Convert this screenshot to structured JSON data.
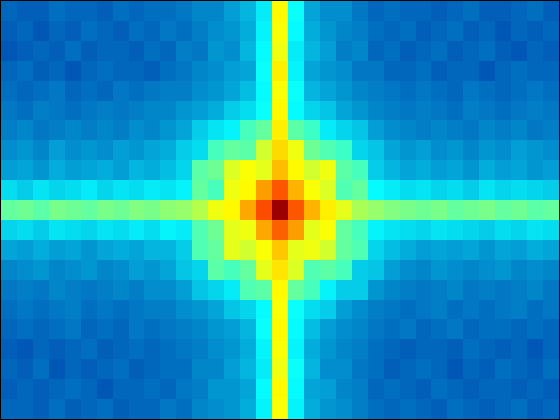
{
  "chart_data": {
    "type": "heatmap",
    "color": "jet",
    "tick_labels": false,
    "grid": false,
    "xlim": [
      0.5,
      35.5
    ],
    "ylim": [
      21.5,
      0.5
    ],
    "clim": [
      0,
      1
    ],
    "cells": [
      [
        0.18,
        0.17,
        0.17,
        0.19,
        0.18,
        0.18,
        0.17,
        0.19,
        0.18,
        0.19,
        0.19,
        0.2,
        0.22,
        0.22,
        0.25,
        0.28,
        0.35,
        0.63,
        0.38,
        0.26,
        0.23,
        0.23,
        0.2,
        0.18,
        0.19,
        0.18,
        0.18,
        0.17,
        0.18,
        0.19,
        0.17,
        0.17,
        0.18,
        0.19,
        0.17
      ],
      [
        0.17,
        0.18,
        0.16,
        0.18,
        0.17,
        0.19,
        0.18,
        0.17,
        0.19,
        0.18,
        0.2,
        0.19,
        0.21,
        0.23,
        0.24,
        0.27,
        0.36,
        0.62,
        0.37,
        0.27,
        0.24,
        0.22,
        0.21,
        0.19,
        0.18,
        0.19,
        0.17,
        0.18,
        0.19,
        0.17,
        0.18,
        0.16,
        0.18,
        0.17,
        0.18
      ],
      [
        0.16,
        0.17,
        0.18,
        0.17,
        0.19,
        0.17,
        0.18,
        0.18,
        0.17,
        0.19,
        0.18,
        0.21,
        0.2,
        0.24,
        0.23,
        0.28,
        0.37,
        0.61,
        0.35,
        0.28,
        0.25,
        0.21,
        0.22,
        0.18,
        0.19,
        0.17,
        0.18,
        0.19,
        0.17,
        0.18,
        0.19,
        0.17,
        0.16,
        0.18,
        0.17
      ],
      [
        0.18,
        0.19,
        0.17,
        0.18,
        0.16,
        0.18,
        0.19,
        0.18,
        0.18,
        0.17,
        0.19,
        0.2,
        0.22,
        0.23,
        0.25,
        0.26,
        0.38,
        0.64,
        0.36,
        0.26,
        0.24,
        0.23,
        0.2,
        0.2,
        0.18,
        0.18,
        0.19,
        0.17,
        0.18,
        0.18,
        0.16,
        0.18,
        0.19,
        0.18,
        0.18
      ],
      [
        0.19,
        0.18,
        0.19,
        0.2,
        0.18,
        0.19,
        0.18,
        0.2,
        0.19,
        0.2,
        0.21,
        0.21,
        0.23,
        0.24,
        0.26,
        0.29,
        0.37,
        0.62,
        0.38,
        0.28,
        0.26,
        0.24,
        0.22,
        0.21,
        0.2,
        0.19,
        0.2,
        0.19,
        0.18,
        0.2,
        0.19,
        0.18,
        0.19,
        0.2,
        0.19
      ],
      [
        0.2,
        0.19,
        0.21,
        0.2,
        0.19,
        0.2,
        0.21,
        0.2,
        0.21,
        0.22,
        0.22,
        0.24,
        0.25,
        0.27,
        0.31,
        0.33,
        0.38,
        0.63,
        0.37,
        0.32,
        0.3,
        0.26,
        0.24,
        0.22,
        0.21,
        0.2,
        0.21,
        0.2,
        0.19,
        0.21,
        0.2,
        0.19,
        0.2,
        0.21,
        0.2
      ],
      [
        0.21,
        0.22,
        0.2,
        0.21,
        0.22,
        0.21,
        0.22,
        0.21,
        0.23,
        0.22,
        0.24,
        0.26,
        0.31,
        0.34,
        0.36,
        0.44,
        0.47,
        0.64,
        0.46,
        0.43,
        0.35,
        0.32,
        0.3,
        0.25,
        0.23,
        0.22,
        0.21,
        0.22,
        0.21,
        0.2,
        0.22,
        0.21,
        0.22,
        0.2,
        0.21
      ],
      [
        0.23,
        0.24,
        0.22,
        0.25,
        0.23,
        0.24,
        0.23,
        0.25,
        0.24,
        0.26,
        0.27,
        0.31,
        0.33,
        0.44,
        0.47,
        0.46,
        0.58,
        0.66,
        0.61,
        0.48,
        0.45,
        0.43,
        0.32,
        0.3,
        0.26,
        0.24,
        0.25,
        0.23,
        0.24,
        0.22,
        0.24,
        0.23,
        0.25,
        0.24,
        0.23
      ],
      [
        0.25,
        0.26,
        0.24,
        0.27,
        0.25,
        0.26,
        0.27,
        0.25,
        0.28,
        0.27,
        0.29,
        0.32,
        0.46,
        0.48,
        0.59,
        0.62,
        0.6,
        0.69,
        0.63,
        0.58,
        0.61,
        0.46,
        0.44,
        0.31,
        0.28,
        0.26,
        0.27,
        0.25,
        0.26,
        0.24,
        0.27,
        0.25,
        0.26,
        0.24,
        0.25
      ],
      [
        0.33,
        0.31,
        0.34,
        0.32,
        0.33,
        0.35,
        0.32,
        0.34,
        0.33,
        0.35,
        0.34,
        0.36,
        0.47,
        0.44,
        0.61,
        0.63,
        0.72,
        0.79,
        0.7,
        0.62,
        0.59,
        0.45,
        0.47,
        0.37,
        0.35,
        0.33,
        0.34,
        0.32,
        0.33,
        0.31,
        0.34,
        0.32,
        0.33,
        0.32,
        0.31
      ],
      [
        0.47,
        0.48,
        0.46,
        0.49,
        0.48,
        0.47,
        0.49,
        0.48,
        0.5,
        0.49,
        0.51,
        0.52,
        0.55,
        0.61,
        0.63,
        0.71,
        0.8,
        0.97,
        0.79,
        0.7,
        0.64,
        0.6,
        0.54,
        0.52,
        0.5,
        0.49,
        0.48,
        0.49,
        0.47,
        0.48,
        0.49,
        0.47,
        0.48,
        0.46,
        0.47
      ],
      [
        0.32,
        0.33,
        0.31,
        0.34,
        0.33,
        0.32,
        0.34,
        0.33,
        0.35,
        0.33,
        0.36,
        0.35,
        0.45,
        0.48,
        0.6,
        0.61,
        0.71,
        0.78,
        0.72,
        0.6,
        0.62,
        0.47,
        0.44,
        0.36,
        0.34,
        0.33,
        0.32,
        0.34,
        0.33,
        0.32,
        0.31,
        0.33,
        0.32,
        0.34,
        0.33
      ],
      [
        0.26,
        0.25,
        0.27,
        0.25,
        0.26,
        0.24,
        0.26,
        0.27,
        0.26,
        0.28,
        0.28,
        0.31,
        0.45,
        0.47,
        0.6,
        0.58,
        0.62,
        0.68,
        0.6,
        0.61,
        0.58,
        0.47,
        0.45,
        0.32,
        0.29,
        0.27,
        0.25,
        0.26,
        0.25,
        0.26,
        0.24,
        0.26,
        0.25,
        0.27,
        0.26
      ],
      [
        0.22,
        0.23,
        0.24,
        0.22,
        0.23,
        0.24,
        0.22,
        0.23,
        0.25,
        0.24,
        0.26,
        0.3,
        0.32,
        0.46,
        0.44,
        0.47,
        0.6,
        0.65,
        0.59,
        0.45,
        0.46,
        0.44,
        0.31,
        0.3,
        0.25,
        0.23,
        0.22,
        0.24,
        0.23,
        0.22,
        0.23,
        0.24,
        0.22,
        0.23,
        0.22
      ],
      [
        0.2,
        0.21,
        0.2,
        0.22,
        0.21,
        0.2,
        0.21,
        0.22,
        0.21,
        0.23,
        0.23,
        0.25,
        0.3,
        0.32,
        0.35,
        0.45,
        0.46,
        0.63,
        0.47,
        0.44,
        0.36,
        0.31,
        0.31,
        0.24,
        0.22,
        0.21,
        0.2,
        0.21,
        0.22,
        0.2,
        0.21,
        0.2,
        0.21,
        0.22,
        0.2
      ],
      [
        0.19,
        0.2,
        0.19,
        0.2,
        0.21,
        0.19,
        0.2,
        0.19,
        0.2,
        0.21,
        0.21,
        0.23,
        0.24,
        0.26,
        0.3,
        0.32,
        0.37,
        0.62,
        0.38,
        0.33,
        0.31,
        0.25,
        0.23,
        0.21,
        0.2,
        0.19,
        0.2,
        0.21,
        0.19,
        0.2,
        0.19,
        0.2,
        0.21,
        0.19,
        0.2
      ],
      [
        0.18,
        0.19,
        0.18,
        0.19,
        0.2,
        0.18,
        0.19,
        0.18,
        0.2,
        0.19,
        0.2,
        0.21,
        0.22,
        0.24,
        0.25,
        0.28,
        0.38,
        0.63,
        0.37,
        0.29,
        0.25,
        0.23,
        0.22,
        0.2,
        0.19,
        0.2,
        0.18,
        0.19,
        0.2,
        0.18,
        0.19,
        0.19,
        0.18,
        0.19,
        0.18
      ],
      [
        0.17,
        0.16,
        0.18,
        0.17,
        0.18,
        0.19,
        0.17,
        0.18,
        0.19,
        0.18,
        0.19,
        0.2,
        0.21,
        0.23,
        0.24,
        0.27,
        0.36,
        0.62,
        0.36,
        0.27,
        0.24,
        0.22,
        0.21,
        0.19,
        0.18,
        0.17,
        0.18,
        0.18,
        0.17,
        0.19,
        0.18,
        0.17,
        0.18,
        0.16,
        0.18
      ],
      [
        0.18,
        0.17,
        0.19,
        0.16,
        0.18,
        0.17,
        0.18,
        0.19,
        0.17,
        0.18,
        0.19,
        0.19,
        0.22,
        0.22,
        0.25,
        0.28,
        0.35,
        0.61,
        0.38,
        0.28,
        0.23,
        0.23,
        0.2,
        0.19,
        0.17,
        0.18,
        0.19,
        0.18,
        0.16,
        0.18,
        0.17,
        0.19,
        0.18,
        0.17,
        0.19
      ],
      [
        0.17,
        0.18,
        0.17,
        0.18,
        0.19,
        0.18,
        0.16,
        0.18,
        0.18,
        0.19,
        0.18,
        0.2,
        0.21,
        0.24,
        0.24,
        0.26,
        0.37,
        0.63,
        0.37,
        0.26,
        0.25,
        0.22,
        0.21,
        0.18,
        0.19,
        0.18,
        0.17,
        0.19,
        0.18,
        0.17,
        0.18,
        0.18,
        0.17,
        0.18,
        0.17
      ],
      [
        0.18,
        0.18,
        0.17,
        0.19,
        0.17,
        0.18,
        0.19,
        0.17,
        0.18,
        0.18,
        0.2,
        0.19,
        0.22,
        0.23,
        0.24,
        0.27,
        0.36,
        0.62,
        0.36,
        0.27,
        0.24,
        0.23,
        0.21,
        0.19,
        0.18,
        0.19,
        0.18,
        0.17,
        0.19,
        0.18,
        0.17,
        0.18,
        0.19,
        0.17,
        0.18
      ]
    ]
  }
}
